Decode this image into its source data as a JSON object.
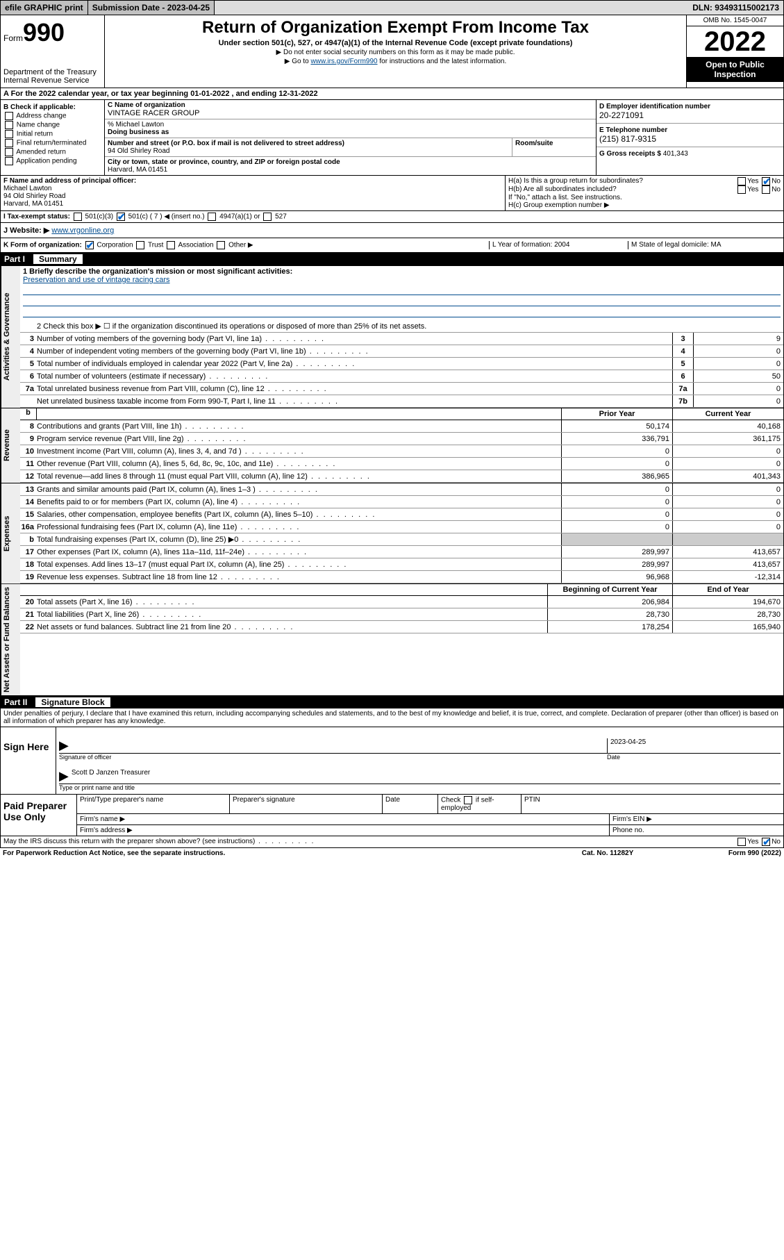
{
  "topbar": {
    "efile": "efile GRAPHIC print",
    "submission_label": "Submission Date - 2023-04-25",
    "dln": "DLN: 93493115002173"
  },
  "header": {
    "form_word": "Form",
    "form_num": "990",
    "dept": "Department of the Treasury",
    "irs": "Internal Revenue Service",
    "title": "Return of Organization Exempt From Income Tax",
    "sub": "Under section 501(c), 527, or 4947(a)(1) of the Internal Revenue Code (except private foundations)",
    "line1": "▶ Do not enter social security numbers on this form as it may be made public.",
    "line2_pre": "▶ Go to ",
    "line2_link": "www.irs.gov/Form990",
    "line2_post": " for instructions and the latest information.",
    "omb": "OMB No. 1545-0047",
    "year": "2022",
    "inspect": "Open to Public Inspection"
  },
  "row_a": "A For the 2022 calendar year, or tax year beginning 01-01-2022   , and ending 12-31-2022",
  "col_b": {
    "label": "B Check if applicable:",
    "items": [
      "Address change",
      "Name change",
      "Initial return",
      "Final return/terminated",
      "Amended return",
      "Application pending"
    ]
  },
  "col_c": {
    "name_lbl": "C Name of organization",
    "name": "VINTAGE RACER GROUP",
    "care_lbl": "% Michael Lawton",
    "dba_lbl": "Doing business as",
    "addr_lbl": "Number and street (or P.O. box if mail is not delivered to street address)",
    "addr": "94 Old Shirley Road",
    "room_lbl": "Room/suite",
    "city_lbl": "City or town, state or province, country, and ZIP or foreign postal code",
    "city": "Harvard, MA  01451"
  },
  "col_d": {
    "ein_lbl": "D Employer identification number",
    "ein": "20-2271091",
    "tel_lbl": "E Telephone number",
    "tel": "(215) 817-9315",
    "gross_lbl": "G Gross receipts $",
    "gross": "401,343"
  },
  "row_f": {
    "lbl": "F Name and address of principal officer:",
    "name": "Michael Lawton",
    "addr1": "94 Old Shirley Road",
    "addr2": "Harvard, MA  01451"
  },
  "row_h": {
    "ha": "H(a)  Is this a group return for subordinates?",
    "hb": "H(b)  Are all subordinates included?",
    "hb_note": "If \"No,\" attach a list. See instructions.",
    "hc": "H(c)  Group exemption number ▶"
  },
  "row_i": {
    "lbl": "I   Tax-exempt status:",
    "opts": [
      "501(c)(3)",
      "501(c) ( 7 ) ◀ (insert no.)",
      "4947(a)(1) or",
      "527"
    ]
  },
  "row_j": {
    "lbl": "J   Website: ▶",
    "url": "www.vrgonline.org"
  },
  "row_k": {
    "left_lbl": "K Form of organization:",
    "opts": [
      "Corporation",
      "Trust",
      "Association",
      "Other ▶"
    ],
    "mid": "L Year of formation: 2004",
    "right": "M State of legal domicile: MA"
  },
  "part1": {
    "hdr_num": "Part I",
    "hdr_title": "Summary",
    "q1_lbl": "1  Briefly describe the organization's mission or most significant activities:",
    "q1_val": "Preservation and use of vintage racing cars",
    "q2": "2   Check this box ▶ ☐  if the organization discontinued its operations or disposed of more than 25% of its net assets.",
    "rows_gov": [
      {
        "n": "3",
        "d": "Number of voting members of the governing body (Part VI, line 1a)",
        "box": "3",
        "v": "9"
      },
      {
        "n": "4",
        "d": "Number of independent voting members of the governing body (Part VI, line 1b)",
        "box": "4",
        "v": "0"
      },
      {
        "n": "5",
        "d": "Total number of individuals employed in calendar year 2022 (Part V, line 2a)",
        "box": "5",
        "v": "0"
      },
      {
        "n": "6",
        "d": "Total number of volunteers (estimate if necessary)",
        "box": "6",
        "v": "50"
      },
      {
        "n": "7a",
        "d": "Total unrelated business revenue from Part VIII, column (C), line 12",
        "box": "7a",
        "v": "0"
      },
      {
        "n": "",
        "d": "Net unrelated business taxable income from Form 990-T, Part I, line 11",
        "box": "7b",
        "v": "0"
      }
    ],
    "col_hdr_b": "b",
    "col_hdr_prior": "Prior Year",
    "col_hdr_current": "Current Year",
    "rows_rev": [
      {
        "n": "8",
        "d": "Contributions and grants (Part VIII, line 1h)",
        "p": "50,174",
        "c": "40,168"
      },
      {
        "n": "9",
        "d": "Program service revenue (Part VIII, line 2g)",
        "p": "336,791",
        "c": "361,175"
      },
      {
        "n": "10",
        "d": "Investment income (Part VIII, column (A), lines 3, 4, and 7d )",
        "p": "0",
        "c": "0"
      },
      {
        "n": "11",
        "d": "Other revenue (Part VIII, column (A), lines 5, 6d, 8c, 9c, 10c, and 11e)",
        "p": "0",
        "c": "0"
      },
      {
        "n": "12",
        "d": "Total revenue—add lines 8 through 11 (must equal Part VIII, column (A), line 12)",
        "p": "386,965",
        "c": "401,343"
      }
    ],
    "rows_exp": [
      {
        "n": "13",
        "d": "Grants and similar amounts paid (Part IX, column (A), lines 1–3 )",
        "p": "0",
        "c": "0"
      },
      {
        "n": "14",
        "d": "Benefits paid to or for members (Part IX, column (A), line 4)",
        "p": "0",
        "c": "0"
      },
      {
        "n": "15",
        "d": "Salaries, other compensation, employee benefits (Part IX, column (A), lines 5–10)",
        "p": "0",
        "c": "0"
      },
      {
        "n": "16a",
        "d": "Professional fundraising fees (Part IX, column (A), line 11e)",
        "p": "0",
        "c": "0"
      },
      {
        "n": "b",
        "d": "Total fundraising expenses (Part IX, column (D), line 25) ▶0",
        "p": "",
        "c": "",
        "shaded": true
      },
      {
        "n": "17",
        "d": "Other expenses (Part IX, column (A), lines 11a–11d, 11f–24e)",
        "p": "289,997",
        "c": "413,657"
      },
      {
        "n": "18",
        "d": "Total expenses. Add lines 13–17 (must equal Part IX, column (A), line 25)",
        "p": "289,997",
        "c": "413,657"
      },
      {
        "n": "19",
        "d": "Revenue less expenses. Subtract line 18 from line 12",
        "p": "96,968",
        "c": "-12,314"
      }
    ],
    "col_hdr_begin": "Beginning of Current Year",
    "col_hdr_end": "End of Year",
    "rows_net": [
      {
        "n": "20",
        "d": "Total assets (Part X, line 16)",
        "p": "206,984",
        "c": "194,670"
      },
      {
        "n": "21",
        "d": "Total liabilities (Part X, line 26)",
        "p": "28,730",
        "c": "28,730"
      },
      {
        "n": "22",
        "d": "Net assets or fund balances. Subtract line 21 from line 20",
        "p": "178,254",
        "c": "165,940"
      }
    ],
    "vtabs": [
      "Activities & Governance",
      "Revenue",
      "Expenses",
      "Net Assets or Fund Balances"
    ]
  },
  "part2": {
    "hdr_num": "Part II",
    "hdr_title": "Signature Block",
    "decl": "Under penalties of perjury, I declare that I have examined this return, including accompanying schedules and statements, and to the best of my knowledge and belief, it is true, correct, and complete. Declaration of preparer (other than officer) is based on all information of which preparer has any knowledge."
  },
  "sign": {
    "label": "Sign Here",
    "sig_lbl": "Signature of officer",
    "date_lbl": "Date",
    "date": "2023-04-25",
    "name": "Scott D Janzen Treasurer",
    "name_lbl": "Type or print name and title"
  },
  "paid": {
    "label": "Paid Preparer Use Only",
    "c1": "Print/Type preparer's name",
    "c2": "Preparer's signature",
    "c3": "Date",
    "c4a": "Check",
    "c4b": "if self-employed",
    "c5": "PTIN",
    "r2a": "Firm's name  ▶",
    "r2b": "Firm's EIN ▶",
    "r3a": "Firm's address ▶",
    "r3b": "Phone no."
  },
  "footer": {
    "discuss": "May the IRS discuss this return with the preparer shown above? (see instructions)",
    "paperwork": "For Paperwork Reduction Act Notice, see the separate instructions.",
    "cat": "Cat. No. 11282Y",
    "form": "Form 990 (2022)"
  },
  "yn": {
    "yes": "Yes",
    "no": "No"
  }
}
